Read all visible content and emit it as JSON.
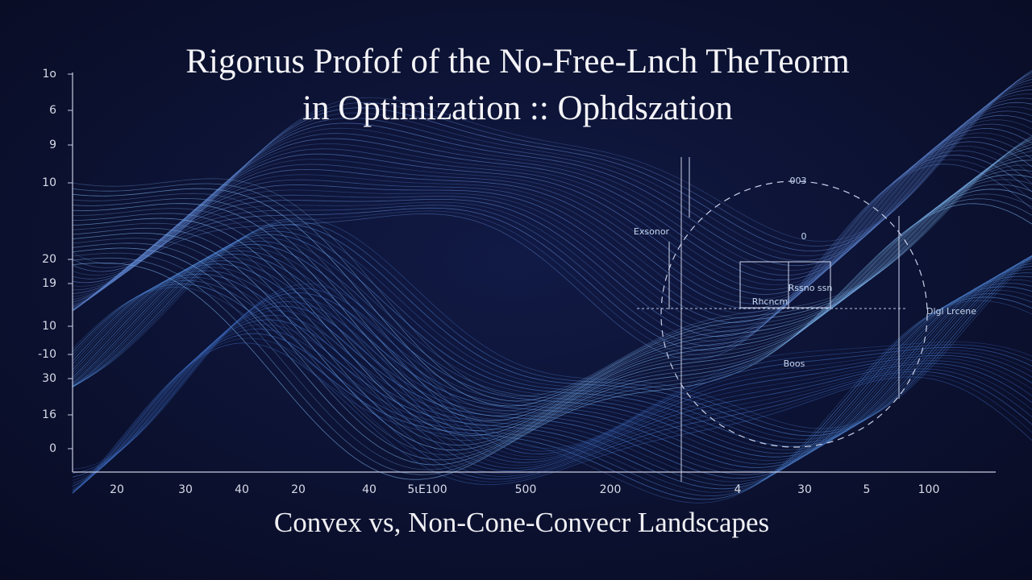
{
  "header": {
    "title_lines": [
      "Rigorιus Profof of the No-Free-Lnch TheTeorm",
      "in Optimization :: Ophdszation"
    ]
  },
  "axis": {
    "y_labels": [
      "1o",
      "6",
      "9",
      "10",
      "20",
      "19",
      "10",
      "-10",
      "30",
      "16",
      "0"
    ],
    "x_labels": [
      "20",
      "30",
      "40",
      "20",
      "40",
      "5ιE100",
      "500",
      "200",
      "4",
      "30",
      "5",
      "100"
    ]
  },
  "annotations": [
    "Exsonor",
    "003",
    "Rhcncm",
    "Rssno ssn",
    "Dlgl Lrcene",
    "Boos",
    "0"
  ],
  "caption": "Convex vs, Non-Cone-Convecr Landscapes"
}
